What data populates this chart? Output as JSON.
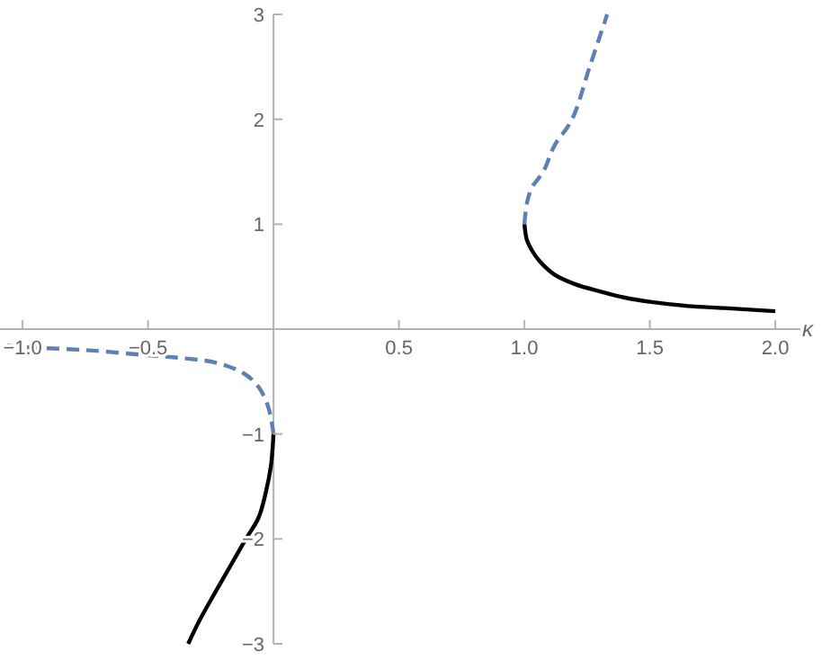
{
  "chart_data": {
    "type": "line",
    "xlabel": "κ",
    "xlim": [
      -1.09,
      2.1
    ],
    "ylim": [
      -3,
      3
    ],
    "xticks": [
      {
        "value": -1,
        "label": "−1.0"
      },
      {
        "value": -0.5,
        "label": "−0.5"
      },
      0.5,
      {
        "value": 1,
        "label": "1.0"
      },
      1.5,
      {
        "value": 2,
        "label": "2.0"
      }
    ],
    "yticks": [
      -3,
      -2,
      -1,
      1,
      2,
      3
    ],
    "grid": false,
    "marker": "none",
    "series": [
      {
        "color": "#000000",
        "line_style": "solid",
        "x": [
          1,
          1.01,
          1.03,
          1.06,
          1.12,
          1.2,
          1.3,
          1.4,
          1.5,
          1.65,
          1.8,
          2.0
        ],
        "values": [
          1,
          0.85,
          0.75,
          0.65,
          0.52,
          0.43,
          0.36,
          0.3,
          0.26,
          0.22,
          0.2,
          0.17
        ]
      },
      {
        "color": "#5e81b5",
        "line_style": "dashed",
        "x": [
          1,
          1.01,
          1.03,
          1.075,
          1.12,
          1.19,
          1.26,
          1.33
        ],
        "values": [
          1,
          1.2,
          1.35,
          1.5,
          1.75,
          2,
          2.5,
          3
        ]
      },
      {
        "color": "#000000",
        "line_style": "solid",
        "x": [
          0,
          -0.01,
          -0.03,
          -0.06,
          -0.11,
          -0.17,
          -0.23,
          -0.3,
          -0.34
        ],
        "values": [
          -1,
          -1.3,
          -1.55,
          -1.8,
          -2,
          -2.25,
          -2.5,
          -2.8,
          -3
        ]
      },
      {
        "color": "#5e81b5",
        "line_style": "dashed",
        "x": [
          0,
          -0.02,
          -0.06,
          -0.12,
          -0.23,
          -0.35,
          -0.5,
          -0.75,
          -1,
          -1.09
        ],
        "values": [
          -1,
          -0.75,
          -0.55,
          -0.42,
          -0.32,
          -0.28,
          -0.25,
          -0.2,
          -0.17,
          -0.15
        ]
      }
    ]
  }
}
